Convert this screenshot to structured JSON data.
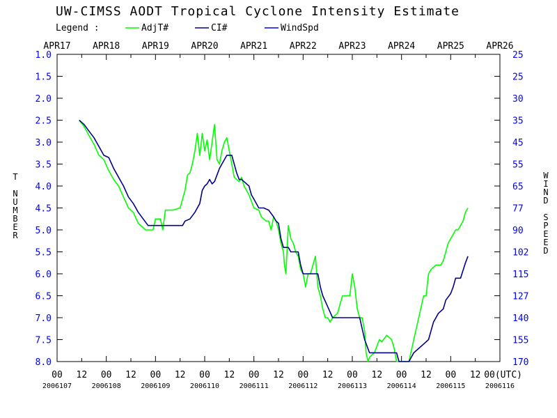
{
  "chart_data": {
    "type": "line",
    "title": "UW-CIMSS AODT Tropical Cyclone Intensity Estimate",
    "legend_label": "Legend :",
    "legend_placement": "top",
    "ylabel": "T NUMBER",
    "y2label": "WIND SPEED",
    "xlabel_unit": "00(UTC)",
    "y_inverted": true,
    "ylim": [
      1.0,
      8.0
    ],
    "xlim": [
      0,
      9
    ],
    "yticks": [
      "1.0",
      "1.5",
      "2.0",
      "2.5",
      "3.0",
      "3.5",
      "4.0",
      "4.5",
      "5.0",
      "5.5",
      "6.0",
      "6.5",
      "7.0",
      "7.5",
      "8.0"
    ],
    "y2ticks": [
      "25",
      "25",
      "30",
      "35",
      "45",
      "55",
      "65",
      "77",
      "90",
      "102",
      "115",
      "127",
      "140",
      "155",
      "170"
    ],
    "date_labels": [
      "APR17",
      "APR18",
      "APR19",
      "APR20",
      "APR21",
      "APR22",
      "APR23",
      "APR24",
      "APR25",
      "APR26"
    ],
    "julian_labels": [
      "2006107",
      "2006108",
      "2006109",
      "2006110",
      "2006111",
      "2006112",
      "2006113",
      "2006114",
      "2006115",
      "2006116"
    ],
    "hour_labels": [
      "00",
      "12",
      "00",
      "12",
      "00",
      "12",
      "00",
      "12",
      "00",
      "12",
      "00",
      "12",
      "00",
      "12",
      "00",
      "12",
      "00",
      "12",
      "00"
    ],
    "series": [
      {
        "name": "AdjT#",
        "color": "#00ff00",
        "points": [
          [
            0.45,
            2.5
          ],
          [
            0.55,
            2.65
          ],
          [
            0.65,
            2.85
          ],
          [
            0.75,
            3.05
          ],
          [
            0.85,
            3.3
          ],
          [
            0.95,
            3.4
          ],
          [
            1.05,
            3.65
          ],
          [
            1.15,
            3.85
          ],
          [
            1.25,
            4.0
          ],
          [
            1.35,
            4.25
          ],
          [
            1.45,
            4.5
          ],
          [
            1.55,
            4.6
          ],
          [
            1.65,
            4.85
          ],
          [
            1.75,
            4.95
          ],
          [
            1.8,
            5.0
          ],
          [
            1.95,
            5.0
          ],
          [
            2.0,
            4.75
          ],
          [
            2.1,
            4.75
          ],
          [
            2.15,
            5.0
          ],
          [
            2.2,
            4.55
          ],
          [
            2.35,
            4.55
          ],
          [
            2.5,
            4.5
          ],
          [
            2.6,
            4.1
          ],
          [
            2.65,
            3.75
          ],
          [
            2.7,
            3.7
          ],
          [
            2.75,
            3.5
          ],
          [
            2.8,
            3.2
          ],
          [
            2.85,
            2.8
          ],
          [
            2.9,
            3.3
          ],
          [
            2.95,
            2.8
          ],
          [
            3.0,
            3.2
          ],
          [
            3.05,
            2.95
          ],
          [
            3.1,
            3.4
          ],
          [
            3.15,
            3.0
          ],
          [
            3.2,
            2.6
          ],
          [
            3.25,
            3.4
          ],
          [
            3.3,
            3.5
          ],
          [
            3.35,
            3.2
          ],
          [
            3.4,
            3.0
          ],
          [
            3.45,
            2.9
          ],
          [
            3.55,
            3.5
          ],
          [
            3.6,
            3.8
          ],
          [
            3.7,
            3.9
          ],
          [
            3.75,
            3.8
          ],
          [
            3.8,
            4.0
          ],
          [
            3.9,
            4.2
          ],
          [
            4.0,
            4.5
          ],
          [
            4.1,
            4.55
          ],
          [
            4.15,
            4.7
          ],
          [
            4.2,
            4.75
          ],
          [
            4.25,
            4.8
          ],
          [
            4.3,
            4.8
          ],
          [
            4.35,
            5.0
          ],
          [
            4.4,
            4.7
          ],
          [
            4.45,
            4.8
          ],
          [
            4.5,
            5.0
          ],
          [
            4.55,
            5.3
          ],
          [
            4.6,
            5.5
          ],
          [
            4.62,
            5.8
          ],
          [
            4.65,
            6.0
          ],
          [
            4.7,
            4.9
          ],
          [
            4.75,
            5.2
          ],
          [
            4.8,
            5.3
          ],
          [
            4.85,
            5.5
          ],
          [
            4.9,
            5.6
          ],
          [
            4.95,
            5.9
          ],
          [
            5.0,
            6.0
          ],
          [
            5.05,
            6.3
          ],
          [
            5.1,
            6.0
          ],
          [
            5.15,
            6.0
          ],
          [
            5.2,
            5.8
          ],
          [
            5.25,
            5.6
          ],
          [
            5.3,
            6.3
          ],
          [
            5.35,
            6.5
          ],
          [
            5.4,
            6.8
          ],
          [
            5.45,
            7.0
          ],
          [
            5.5,
            7.0
          ],
          [
            5.55,
            7.1
          ],
          [
            5.6,
            7.0
          ],
          [
            5.7,
            6.9
          ],
          [
            5.75,
            6.7
          ],
          [
            5.8,
            6.5
          ],
          [
            5.9,
            6.5
          ],
          [
            5.95,
            6.5
          ],
          [
            6.0,
            6.0
          ],
          [
            6.05,
            6.3
          ],
          [
            6.1,
            6.8
          ],
          [
            6.15,
            7.0
          ],
          [
            6.2,
            7.0
          ],
          [
            6.25,
            7.3
          ],
          [
            6.28,
            7.8
          ],
          [
            6.32,
            8.0
          ],
          [
            6.35,
            7.9
          ],
          [
            6.45,
            7.8
          ],
          [
            6.55,
            7.5
          ],
          [
            6.6,
            7.55
          ],
          [
            6.7,
            7.4
          ],
          [
            6.75,
            7.45
          ],
          [
            6.8,
            7.5
          ],
          [
            6.85,
            7.7
          ],
          [
            6.9,
            8.0
          ],
          [
            7.05,
            8.0
          ],
          [
            7.15,
            8.0
          ],
          [
            7.25,
            7.5
          ],
          [
            7.35,
            7.0
          ],
          [
            7.45,
            6.5
          ],
          [
            7.5,
            6.5
          ],
          [
            7.55,
            6.0
          ],
          [
            7.6,
            5.9
          ],
          [
            7.65,
            5.85
          ],
          [
            7.7,
            5.8
          ],
          [
            7.8,
            5.8
          ],
          [
            7.85,
            5.7
          ],
          [
            7.9,
            5.5
          ],
          [
            7.95,
            5.3
          ],
          [
            8.0,
            5.2
          ],
          [
            8.05,
            5.1
          ],
          [
            8.1,
            5.0
          ],
          [
            8.15,
            5.0
          ],
          [
            8.2,
            4.9
          ],
          [
            8.25,
            4.8
          ],
          [
            8.3,
            4.6
          ],
          [
            8.35,
            4.5
          ]
        ]
      },
      {
        "name": "CI#",
        "color": "#00008b",
        "points": [
          [
            0.45,
            2.5
          ],
          [
            0.55,
            2.6
          ],
          [
            0.65,
            2.75
          ],
          [
            0.75,
            2.9
          ],
          [
            0.85,
            3.1
          ],
          [
            0.95,
            3.3
          ],
          [
            1.05,
            3.35
          ],
          [
            1.15,
            3.6
          ],
          [
            1.25,
            3.8
          ],
          [
            1.35,
            4.0
          ],
          [
            1.45,
            4.25
          ],
          [
            1.55,
            4.4
          ],
          [
            1.65,
            4.6
          ],
          [
            1.75,
            4.75
          ],
          [
            1.85,
            4.9
          ],
          [
            2.0,
            4.9
          ],
          [
            2.2,
            4.9
          ],
          [
            2.4,
            4.9
          ],
          [
            2.55,
            4.9
          ],
          [
            2.6,
            4.8
          ],
          [
            2.7,
            4.75
          ],
          [
            2.8,
            4.6
          ],
          [
            2.9,
            4.4
          ],
          [
            2.95,
            4.1
          ],
          [
            3.0,
            4.0
          ],
          [
            3.05,
            3.95
          ],
          [
            3.1,
            3.85
          ],
          [
            3.15,
            3.95
          ],
          [
            3.2,
            3.9
          ],
          [
            3.3,
            3.6
          ],
          [
            3.35,
            3.5
          ],
          [
            3.4,
            3.4
          ],
          [
            3.45,
            3.3
          ],
          [
            3.55,
            3.3
          ],
          [
            3.6,
            3.5
          ],
          [
            3.65,
            3.7
          ],
          [
            3.7,
            3.85
          ],
          [
            3.75,
            3.85
          ],
          [
            3.8,
            3.9
          ],
          [
            3.9,
            4.0
          ],
          [
            3.95,
            4.2
          ],
          [
            4.0,
            4.3
          ],
          [
            4.1,
            4.5
          ],
          [
            4.2,
            4.5
          ],
          [
            4.3,
            4.55
          ],
          [
            4.4,
            4.7
          ],
          [
            4.45,
            4.8
          ],
          [
            4.5,
            4.85
          ],
          [
            4.55,
            5.2
          ],
          [
            4.6,
            5.4
          ],
          [
            4.7,
            5.4
          ],
          [
            4.75,
            5.5
          ],
          [
            4.9,
            5.5
          ],
          [
            4.95,
            5.8
          ],
          [
            5.0,
            6.0
          ],
          [
            5.05,
            6.0
          ],
          [
            5.2,
            6.0
          ],
          [
            5.3,
            6.0
          ],
          [
            5.35,
            6.3
          ],
          [
            5.4,
            6.5
          ],
          [
            5.5,
            6.75
          ],
          [
            5.6,
            7.0
          ],
          [
            5.8,
            7.0
          ],
          [
            6.0,
            7.0
          ],
          [
            6.15,
            7.0
          ],
          [
            6.25,
            7.5
          ],
          [
            6.35,
            7.8
          ],
          [
            6.45,
            7.8
          ],
          [
            6.6,
            7.8
          ],
          [
            6.75,
            7.8
          ],
          [
            6.9,
            7.8
          ],
          [
            6.95,
            8.0
          ],
          [
            7.0,
            8.0
          ],
          [
            7.15,
            8.0
          ],
          [
            7.25,
            7.8
          ],
          [
            7.35,
            7.7
          ],
          [
            7.45,
            7.6
          ],
          [
            7.55,
            7.5
          ],
          [
            7.65,
            7.1
          ],
          [
            7.75,
            6.9
          ],
          [
            7.85,
            6.8
          ],
          [
            7.9,
            6.6
          ],
          [
            8.0,
            6.45
          ],
          [
            8.05,
            6.3
          ],
          [
            8.1,
            6.1
          ],
          [
            8.2,
            6.1
          ],
          [
            8.3,
            5.75
          ],
          [
            8.35,
            5.6
          ]
        ]
      },
      {
        "name": "WindSpd",
        "color": "#0000ff",
        "points": []
      }
    ]
  }
}
